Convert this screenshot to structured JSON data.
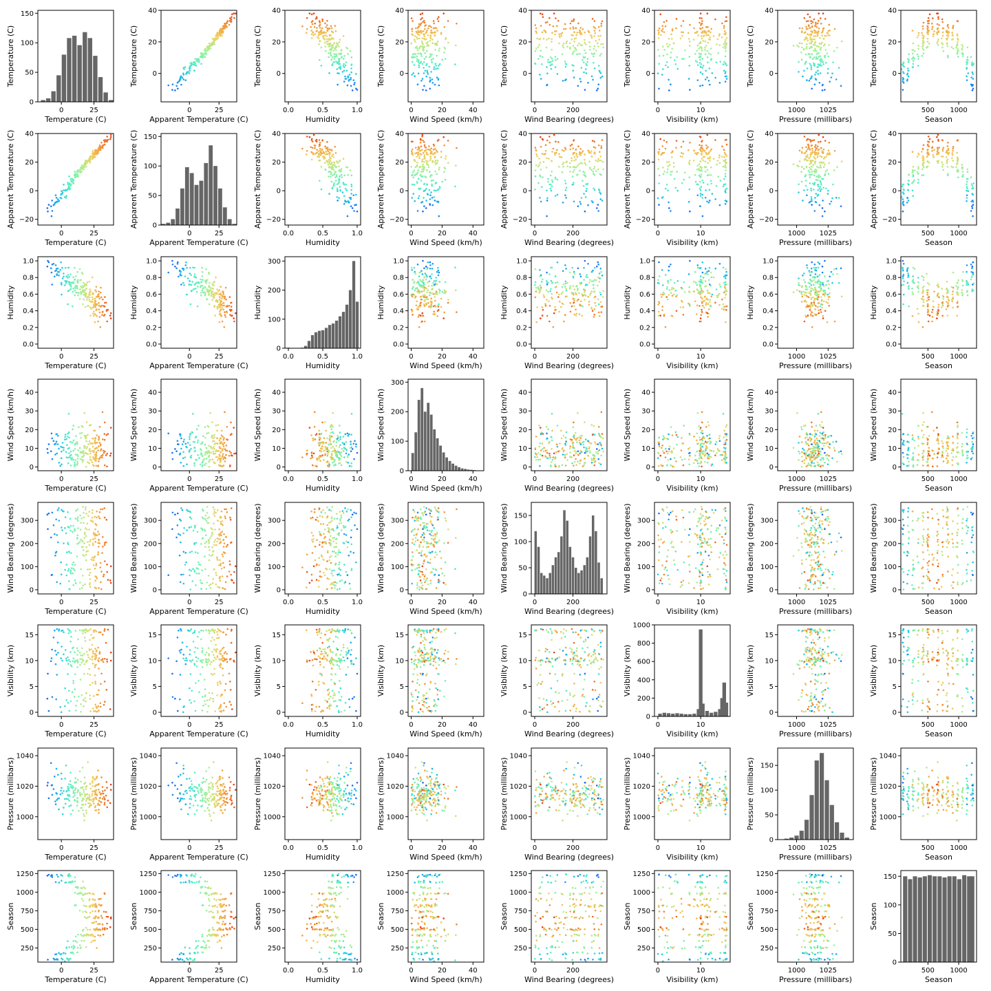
{
  "chart_data": {
    "type": "scatter",
    "layout": "pair-plot",
    "grid": false,
    "legend": "none",
    "colormap": "rainbow",
    "colormap_colors": [
      "#5a1fd6",
      "#1c6ff0",
      "#1cc0e8",
      "#5cf0c0",
      "#a8f090",
      "#f0d060",
      "#f08830",
      "#e02a10"
    ],
    "color_by": "Temperature (C)",
    "histogram_color": "#666666",
    "diagonal": "histogram",
    "variables": [
      {
        "label": "Temperature (C)",
        "range": [
          -18,
          40
        ],
        "ticks": [
          {
            "v": 0,
            "t": "0"
          },
          {
            "v": 25,
            "t": "25"
          }
        ],
        "y_ticks": [
          {
            "v": 0,
            "t": "0"
          },
          {
            "v": 20,
            "t": "20"
          },
          {
            "v": 40,
            "t": "40"
          }
        ]
      },
      {
        "label": "Apparent Temperature (C)",
        "range": [
          -24,
          40
        ],
        "ticks": [
          {
            "v": 0,
            "t": "0"
          },
          {
            "v": 25,
            "t": "25"
          }
        ],
        "y_ticks": [
          {
            "v": -20,
            "t": "−20"
          },
          {
            "v": 0,
            "t": "0"
          },
          {
            "v": 20,
            "t": "20"
          },
          {
            "v": 40,
            "t": "40"
          }
        ]
      },
      {
        "label": "Humidity",
        "range": [
          -0.05,
          1.05
        ],
        "ticks": [
          {
            "v": 0,
            "t": "0.0"
          },
          {
            "v": 0.5,
            "t": "0.5"
          },
          {
            "v": 1,
            "t": "1.0"
          }
        ],
        "y_ticks": [
          {
            "v": 0,
            "t": "0.0"
          },
          {
            "v": 0.2,
            "t": "0.2"
          },
          {
            "v": 0.4,
            "t": "0.4"
          },
          {
            "v": 0.6,
            "t": "0.6"
          },
          {
            "v": 0.8,
            "t": "0.8"
          },
          {
            "v": 1,
            "t": "1.0"
          }
        ]
      },
      {
        "label": "Wind Speed (km/h)",
        "range": [
          -2,
          47
        ],
        "ticks": [
          {
            "v": 0,
            "t": "0"
          },
          {
            "v": 20,
            "t": "20"
          },
          {
            "v": 40,
            "t": "40"
          }
        ],
        "y_ticks": [
          {
            "v": 0,
            "t": "0"
          },
          {
            "v": 10,
            "t": "10"
          },
          {
            "v": 20,
            "t": "20"
          },
          {
            "v": 30,
            "t": "30"
          },
          {
            "v": 40,
            "t": "40"
          }
        ]
      },
      {
        "label": "Wind Bearing (degrees)",
        "range": [
          -18,
          378
        ],
        "ticks": [
          {
            "v": 0,
            "t": "0"
          },
          {
            "v": 200,
            "t": "200"
          }
        ],
        "y_ticks": [
          {
            "v": 0,
            "t": "0"
          },
          {
            "v": 100,
            "t": "100"
          },
          {
            "v": 200,
            "t": "200"
          },
          {
            "v": 300,
            "t": "300"
          }
        ]
      },
      {
        "label": "Visibility (km)",
        "range": [
          -0.8,
          16.9
        ],
        "ticks": [
          {
            "v": 0,
            "t": "0"
          },
          {
            "v": 10,
            "t": "10"
          }
        ],
        "y_ticks": [
          {
            "v": 0,
            "t": "0"
          },
          {
            "v": 5,
            "t": "5"
          },
          {
            "v": 10,
            "t": "10"
          },
          {
            "v": 15,
            "t": "15"
          }
        ]
      },
      {
        "label": "Pressure (millibars)",
        "range": [
          985,
          1045
        ],
        "ticks": [
          {
            "v": 1000,
            "t": "1000"
          },
          {
            "v": 1025,
            "t": "1025"
          }
        ],
        "y_ticks": [
          {
            "v": 1000,
            "t": "1000"
          },
          {
            "v": 1020,
            "t": "1020"
          },
          {
            "v": 1040,
            "t": "1040"
          }
        ]
      },
      {
        "label": "Season",
        "range": [
          60,
          1290
        ],
        "ticks": [
          {
            "v": 500,
            "t": "500"
          },
          {
            "v": 1000,
            "t": "1000"
          }
        ],
        "y_ticks": [
          {
            "v": 250,
            "t": "250"
          },
          {
            "v": 500,
            "t": "500"
          },
          {
            "v": 750,
            "t": "750"
          },
          {
            "v": 1000,
            "t": "1000"
          },
          {
            "v": 1250,
            "t": "1250"
          }
        ]
      }
    ],
    "histograms": [
      {
        "variable": "Temperature (C)",
        "ylim": [
          0,
          155
        ],
        "y_ticks": [
          {
            "v": 0,
            "t": "0"
          },
          {
            "v": 50,
            "t": "50"
          },
          {
            "v": 100,
            "t": "100"
          },
          {
            "v": 150,
            "t": "150"
          }
        ],
        "x": [
          -14,
          -10,
          -6,
          -2,
          2,
          6,
          10,
          14,
          18,
          22,
          26,
          30,
          34,
          38
        ],
        "counts": [
          3,
          6,
          18,
          45,
          80,
          108,
          112,
          96,
          118,
          108,
          78,
          42,
          16,
          3
        ]
      },
      {
        "variable": "Apparent Temperature (C)",
        "ylim": [
          0,
          155
        ],
        "y_ticks": [
          {
            "v": 0,
            "t": "0"
          },
          {
            "v": 50,
            "t": "50"
          },
          {
            "v": 100,
            "t": "100"
          },
          {
            "v": 150,
            "t": "150"
          }
        ],
        "x": [
          -22,
          -18,
          -14,
          -10,
          -6,
          -2,
          2,
          6,
          10,
          14,
          18,
          22,
          26,
          30,
          34,
          38
        ],
        "counts": [
          2,
          4,
          10,
          28,
          62,
          98,
          88,
          68,
          75,
          105,
          135,
          100,
          62,
          30,
          10,
          2
        ]
      },
      {
        "variable": "Humidity",
        "ylim": [
          0,
          315
        ],
        "y_ticks": [
          {
            "v": 0,
            "t": "0"
          },
          {
            "v": 100,
            "t": "100"
          },
          {
            "v": 200,
            "t": "200"
          },
          {
            "v": 300,
            "t": "300"
          }
        ],
        "x": [
          0.0,
          0.05,
          0.1,
          0.15,
          0.2,
          0.25,
          0.3,
          0.35,
          0.4,
          0.45,
          0.5,
          0.55,
          0.6,
          0.65,
          0.7,
          0.75,
          0.8,
          0.85,
          0.9,
          0.95,
          1.0
        ],
        "counts": [
          2,
          0,
          0,
          0,
          2,
          8,
          25,
          45,
          55,
          60,
          62,
          70,
          80,
          85,
          95,
          110,
          125,
          150,
          200,
          300,
          160
        ]
      },
      {
        "variable": "Wind Speed (km/h)",
        "ylim": [
          0,
          310
        ],
        "y_ticks": [
          {
            "v": 0,
            "t": "0"
          },
          {
            "v": 100,
            "t": "100"
          },
          {
            "v": 200,
            "t": "200"
          },
          {
            "v": 300,
            "t": "300"
          }
        ],
        "x": [
          1,
          3,
          5,
          7,
          9,
          11,
          13,
          15,
          17,
          19,
          21,
          23,
          25,
          27,
          29,
          31,
          33,
          35,
          37,
          39,
          41,
          43,
          45
        ],
        "counts": [
          60,
          130,
          240,
          280,
          200,
          230,
          190,
          140,
          110,
          85,
          62,
          45,
          33,
          24,
          17,
          12,
          8,
          6,
          4,
          3,
          2,
          1,
          1
        ]
      },
      {
        "variable": "Wind Bearing (degrees)",
        "ylim": [
          0,
          175
        ],
        "y_ticks": [
          {
            "v": 0,
            "t": "0"
          },
          {
            "v": 50,
            "t": "50"
          },
          {
            "v": 100,
            "t": "100"
          },
          {
            "v": 150,
            "t": "150"
          }
        ],
        "x": [
          5,
          20,
          35,
          50,
          65,
          80,
          95,
          110,
          125,
          140,
          155,
          170,
          185,
          200,
          215,
          230,
          245,
          260,
          275,
          290,
          305,
          320,
          335,
          350
        ],
        "counts": [
          120,
          90,
          40,
          35,
          30,
          40,
          55,
          70,
          80,
          110,
          160,
          140,
          90,
          70,
          50,
          40,
          45,
          55,
          70,
          110,
          150,
          120,
          60,
          30
        ]
      },
      {
        "variable": "Visibility (km)",
        "ylim": [
          0,
          1000
        ],
        "y_ticks": [
          {
            "v": 0,
            "t": "0"
          },
          {
            "v": 200,
            "t": "200"
          },
          {
            "v": 400,
            "t": "400"
          },
          {
            "v": 600,
            "t": "600"
          },
          {
            "v": 800,
            "t": "800"
          },
          {
            "v": 1000,
            "t": "1000"
          }
        ],
        "x": [
          0.5,
          1.5,
          2.5,
          3.5,
          4.5,
          5.5,
          6.5,
          7.5,
          8.5,
          9.5,
          10.0,
          10.5,
          11.5,
          12.5,
          13.5,
          14.5,
          15.0,
          15.5,
          16.0
        ],
        "counts": [
          30,
          40,
          35,
          30,
          35,
          30,
          25,
          25,
          30,
          80,
          950,
          140,
          60,
          40,
          50,
          80,
          200,
          370,
          150
        ]
      },
      {
        "variable": "Pressure (millibars)",
        "ylim": [
          0,
          185
        ],
        "y_ticks": [
          {
            "v": 0,
            "t": "0"
          },
          {
            "v": 50,
            "t": "50"
          },
          {
            "v": 100,
            "t": "100"
          },
          {
            "v": 150,
            "t": "150"
          }
        ],
        "x": [
          992,
          996,
          1000,
          1004,
          1008,
          1012,
          1016,
          1020,
          1024,
          1028,
          1032,
          1036,
          1040
        ],
        "counts": [
          2,
          4,
          8,
          18,
          40,
          90,
          160,
          175,
          120,
          70,
          35,
          14,
          4
        ]
      },
      {
        "variable": "Season",
        "ylim": [
          0,
          160
        ],
        "y_ticks": [
          {
            "v": 0,
            "t": "0"
          },
          {
            "v": 50,
            "t": "50"
          },
          {
            "v": 100,
            "t": "100"
          },
          {
            "v": 150,
            "t": "150"
          }
        ],
        "x": [
          130,
          210,
          290,
          370,
          450,
          530,
          610,
          690,
          770,
          850,
          930,
          1010,
          1090,
          1170,
          1220
        ],
        "counts": [
          150,
          145,
          150,
          148,
          150,
          152,
          150,
          150,
          148,
          150,
          150,
          145,
          152,
          150,
          150
        ]
      }
    ],
    "scatter_sample_size": 220,
    "sampling_note": ""
  }
}
